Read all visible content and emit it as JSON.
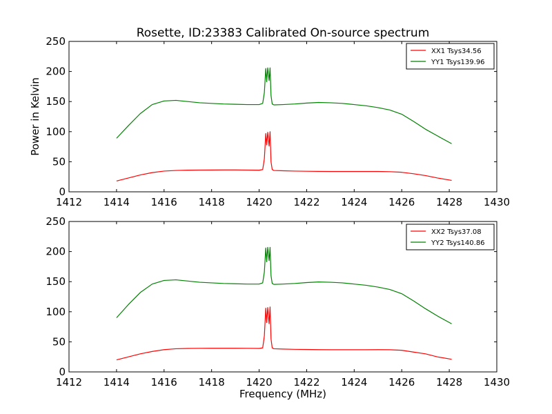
{
  "figure": {
    "title": "Rosette, ID:23383 Calibrated On-source spectrum",
    "xlabel": "Frequency (MHz)",
    "ylabel": "Power in Kelvin"
  },
  "colors": {
    "xx": "#ff0000",
    "yy": "#008000",
    "axes": "#000000",
    "background": "#ffffff"
  },
  "chart_data": [
    {
      "type": "line",
      "title": "Rosette, ID:23383 Calibrated On-source spectrum",
      "xlabel": "",
      "ylabel": "Power in Kelvin",
      "xlim": [
        1412,
        1430
      ],
      "ylim": [
        0,
        250
      ],
      "xticks": [
        1412,
        1414,
        1416,
        1418,
        1420,
        1422,
        1424,
        1426,
        1428,
        1430
      ],
      "yticks": [
        0,
        50,
        100,
        150,
        200,
        250
      ],
      "grid": false,
      "legend": "top-right",
      "series": [
        {
          "name": "XX1 Tsys34.56",
          "color": "#ff0000",
          "x": [
            1414.0,
            1414.5,
            1415.0,
            1415.5,
            1416.0,
            1416.5,
            1417.0,
            1417.5,
            1418.0,
            1418.5,
            1419.0,
            1419.5,
            1420.0,
            1420.15,
            1420.22,
            1420.28,
            1420.32,
            1420.36,
            1420.42,
            1420.46,
            1420.5,
            1420.55,
            1420.62,
            1421.0,
            1421.5,
            1422.0,
            1422.5,
            1423.0,
            1423.5,
            1424.0,
            1424.5,
            1425.0,
            1425.5,
            1426.0,
            1426.5,
            1427.0,
            1427.5,
            1428.1
          ],
          "values": [
            18,
            23,
            28,
            32,
            34.5,
            35.5,
            36,
            36.2,
            36.3,
            36.4,
            36.4,
            36.2,
            36,
            37,
            55,
            97,
            78,
            99,
            76,
            100,
            50,
            37,
            35.5,
            35,
            34.5,
            34.2,
            34,
            33.8,
            33.8,
            33.8,
            33.8,
            33.8,
            33.5,
            32.5,
            30,
            27,
            23,
            19
          ]
        },
        {
          "name": "YY1 Tsys139.96",
          "color": "#008000",
          "x": [
            1414.0,
            1414.5,
            1415.0,
            1415.5,
            1416.0,
            1416.5,
            1417.0,
            1417.5,
            1418.0,
            1418.5,
            1419.0,
            1419.5,
            1420.0,
            1420.15,
            1420.22,
            1420.28,
            1420.32,
            1420.36,
            1420.42,
            1420.46,
            1420.5,
            1420.55,
            1420.62,
            1421.0,
            1421.5,
            1422.0,
            1422.5,
            1423.0,
            1423.5,
            1424.0,
            1424.5,
            1425.0,
            1425.5,
            1426.0,
            1426.5,
            1427.0,
            1427.5,
            1428.1
          ],
          "values": [
            89,
            110,
            130,
            145,
            151,
            152,
            150,
            148,
            147,
            146,
            145.5,
            145,
            145,
            147,
            165,
            205,
            183,
            206,
            185,
            206,
            160,
            146,
            144.5,
            145,
            146,
            147.5,
            148.5,
            148,
            147,
            145,
            143,
            140,
            136,
            129,
            117,
            104,
            93,
            80
          ]
        }
      ]
    },
    {
      "type": "line",
      "title": "",
      "xlabel": "Frequency (MHz)",
      "ylabel": "",
      "xlim": [
        1412,
        1430
      ],
      "ylim": [
        0,
        250
      ],
      "xticks": [
        1412,
        1414,
        1416,
        1418,
        1420,
        1422,
        1424,
        1426,
        1428,
        1430
      ],
      "yticks": [
        0,
        50,
        100,
        150,
        200,
        250
      ],
      "grid": false,
      "legend": "top-right",
      "series": [
        {
          "name": "XX2 Tsys37.08",
          "color": "#ff0000",
          "x": [
            1414.0,
            1414.5,
            1415.0,
            1415.5,
            1416.0,
            1416.5,
            1417.0,
            1417.5,
            1418.0,
            1418.5,
            1419.0,
            1419.5,
            1420.0,
            1420.15,
            1420.22,
            1420.28,
            1420.32,
            1420.36,
            1420.42,
            1420.46,
            1420.5,
            1420.55,
            1420.62,
            1421.0,
            1421.5,
            1422.0,
            1422.5,
            1423.0,
            1423.5,
            1424.0,
            1424.5,
            1425.0,
            1425.5,
            1426.0,
            1426.5,
            1427.0,
            1427.5,
            1428.1
          ],
          "values": [
            20,
            25,
            30,
            34,
            37,
            38.5,
            39,
            39.2,
            39.3,
            39.3,
            39.3,
            39.2,
            39,
            40,
            60,
            106,
            82,
            107,
            80,
            108,
            55,
            40,
            38.5,
            38,
            37.5,
            37.3,
            37,
            36.8,
            36.8,
            36.8,
            36.8,
            37,
            36.8,
            36,
            33,
            30,
            25,
            21
          ]
        },
        {
          "name": "YY2 Tsys140.86",
          "color": "#008000",
          "x": [
            1414.0,
            1414.5,
            1415.0,
            1415.5,
            1416.0,
            1416.5,
            1417.0,
            1417.5,
            1418.0,
            1418.5,
            1419.0,
            1419.5,
            1420.0,
            1420.15,
            1420.22,
            1420.28,
            1420.32,
            1420.36,
            1420.42,
            1420.46,
            1420.5,
            1420.55,
            1420.62,
            1421.0,
            1421.5,
            1422.0,
            1422.5,
            1423.0,
            1423.5,
            1424.0,
            1424.5,
            1425.0,
            1425.5,
            1426.0,
            1426.5,
            1427.0,
            1427.5,
            1428.1
          ],
          "values": [
            90,
            112,
            132,
            146,
            152,
            153,
            151,
            149,
            148,
            147,
            146.5,
            146,
            146,
            148,
            166,
            206,
            183,
            207,
            185,
            207,
            160,
            147,
            145.5,
            146,
            147,
            148.5,
            149.5,
            149,
            148,
            146,
            144,
            141,
            137,
            130,
            118,
            105,
            93,
            80
          ]
        }
      ]
    }
  ]
}
